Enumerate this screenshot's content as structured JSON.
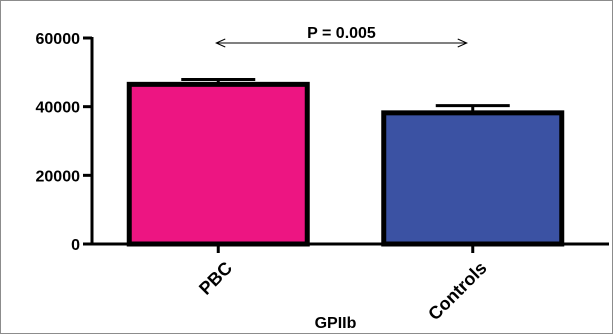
{
  "chart_data": {
    "type": "bar",
    "categories": [
      "PBC",
      "Controls"
    ],
    "values": [
      46500,
      38200
    ],
    "errors": [
      1400,
      2100
    ],
    "colors": [
      "#ED1582",
      "#3B52A3"
    ],
    "edge_color": "#000000",
    "title": "",
    "xlabel": "GPIIb",
    "ylabel": "",
    "ylim": [
      0,
      60000
    ],
    "yticks": [
      0,
      20000,
      40000,
      60000
    ],
    "ytick_labels": [
      "0",
      "20000",
      "40000",
      "60000"
    ],
    "grid": false,
    "annotation": "P = 0.005"
  }
}
